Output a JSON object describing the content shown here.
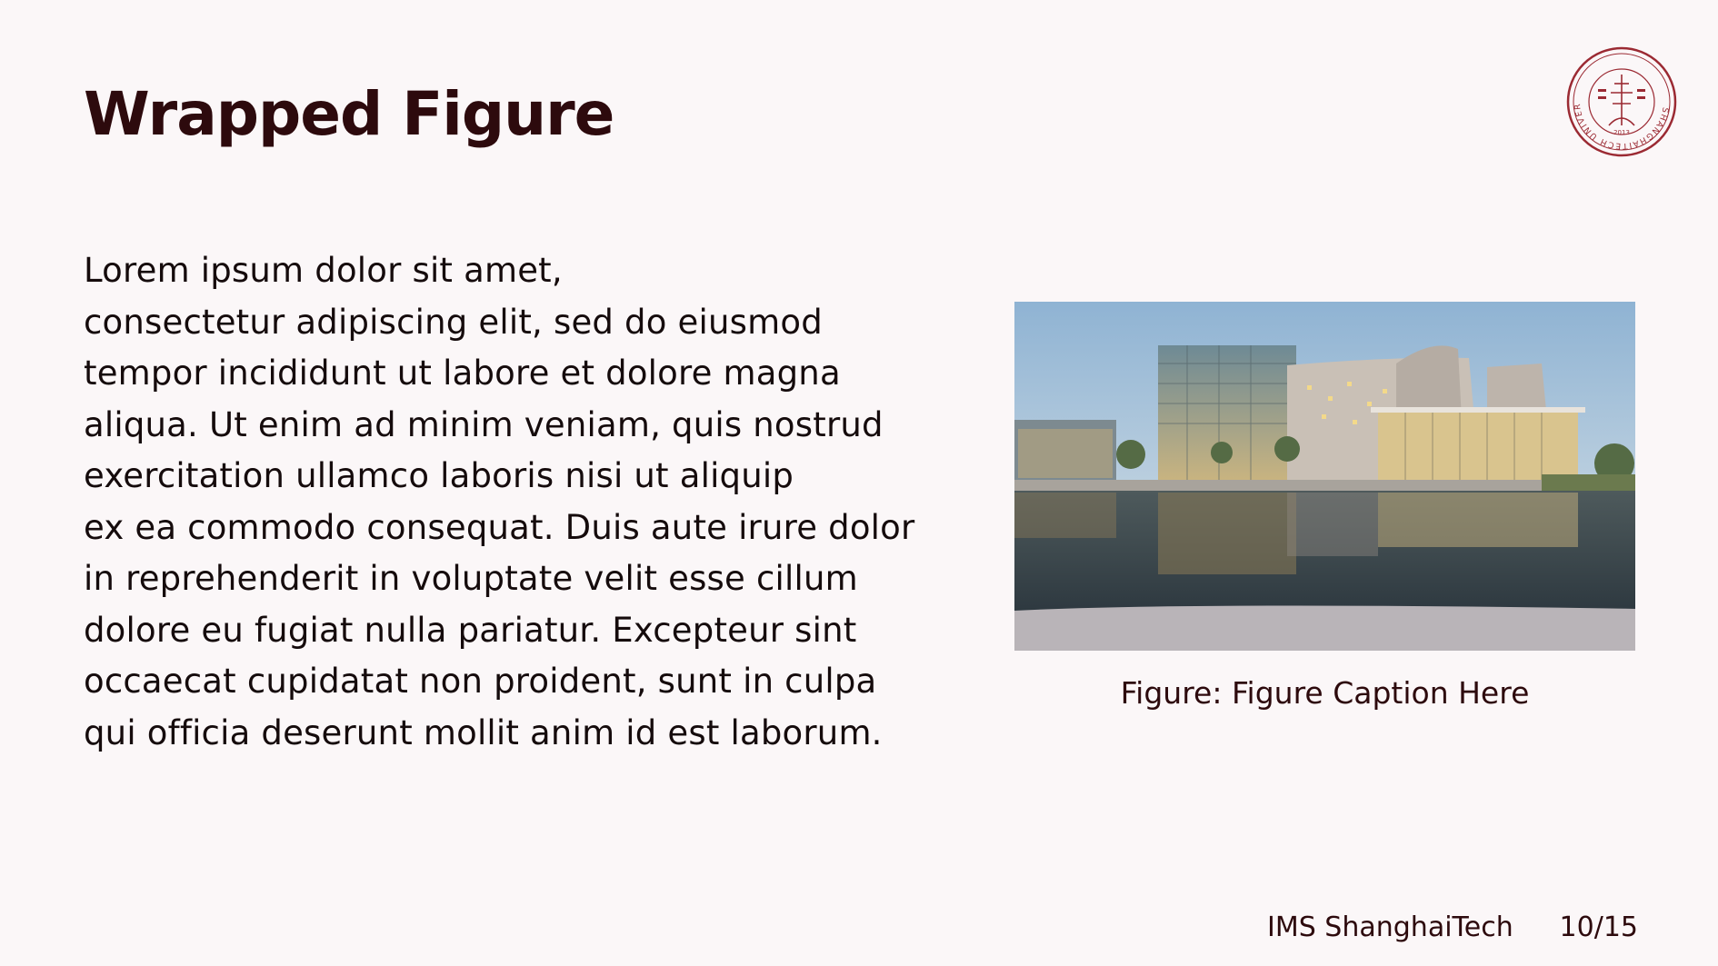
{
  "slide": {
    "title": "Wrapped Figure",
    "body_lines": [
      "Lorem ipsum dolor sit amet,",
      "consectetur adipiscing elit, sed do eiusmod",
      "tempor incididunt ut labore et dolore magna",
      "aliqua. Ut enim ad minim veniam, quis nostrud",
      "exercitation ullamco laboris nisi ut aliquip",
      "ex ea commodo consequat. Duis aute irure dolor",
      "in reprehenderit in voluptate velit esse cillum",
      "dolore eu fugiat nulla pariatur. Excepteur sint",
      "occaecat cupidatat non proident, sunt in culpa",
      "qui officia deserunt mollit anim id est laborum."
    ],
    "figure": {
      "caption": "Figure: Figure Caption Here"
    }
  },
  "logo": {
    "outer_text": "SHANGHAITECH UNIVERSITY",
    "inner_text": "上海科技大学",
    "year": "2013",
    "color": "#9b2a33"
  },
  "footer": {
    "org": "IMS ShanghaiTech",
    "page": "10/15"
  },
  "colors": {
    "background": "#fbf7f8",
    "title": "#2d0a0d",
    "text": "#150b0c",
    "accent": "#9b2a33"
  }
}
